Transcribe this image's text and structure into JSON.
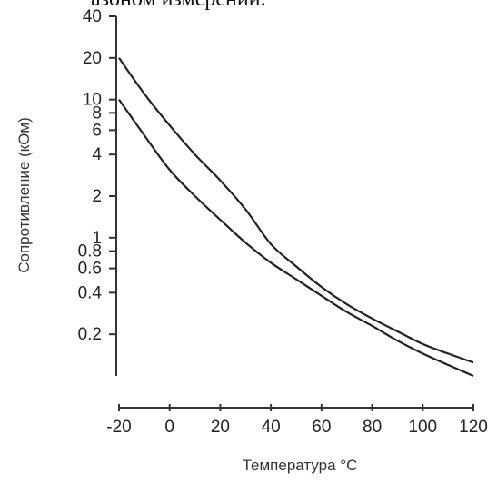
{
  "header_text": "азоном измерений.",
  "chart_data": {
    "type": "line",
    "title": "",
    "xlabel": "Температура °C",
    "ylabel": "Сопротивление (кОм)",
    "xscale": "linear",
    "yscale": "log",
    "xlim": [
      -20,
      120
    ],
    "ylim": [
      0.1,
      40
    ],
    "x_ticks": [
      -20,
      0,
      20,
      40,
      60,
      80,
      100,
      120
    ],
    "x_tick_labels": [
      "-20",
      "0",
      "20",
      "40",
      "60",
      "80",
      "100",
      "120"
    ],
    "y_ticks": [
      0.2,
      0.4,
      0.6,
      0.8,
      1,
      2,
      4,
      6,
      8,
      10,
      20,
      40
    ],
    "y_tick_labels": [
      "0.2",
      "0.4",
      "0.6",
      "0.8",
      "1",
      "2",
      "4",
      "6",
      "8",
      "10",
      "20",
      "40"
    ],
    "grid": false,
    "legend": "none",
    "series": [
      {
        "x": [
          -20,
          -10,
          0,
          10,
          20,
          30,
          40,
          50,
          60,
          70,
          80,
          90,
          100,
          110,
          120
        ],
        "y": [
          20,
          11,
          6.5,
          4,
          2.6,
          1.6,
          0.9,
          0.62,
          0.44,
          0.33,
          0.26,
          0.21,
          0.17,
          0.145,
          0.125
        ]
      },
      {
        "x": [
          -20,
          -10,
          0,
          10,
          20,
          30,
          40,
          50,
          60,
          70,
          80,
          90,
          100,
          110,
          120
        ],
        "y": [
          10,
          5.5,
          3.1,
          2.0,
          1.35,
          0.92,
          0.66,
          0.5,
          0.38,
          0.29,
          0.23,
          0.18,
          0.145,
          0.12,
          0.1
        ]
      }
    ]
  }
}
